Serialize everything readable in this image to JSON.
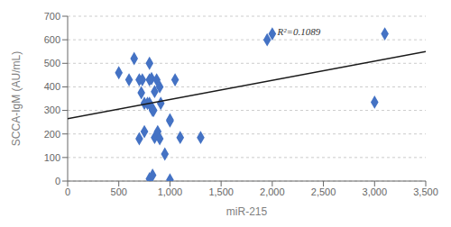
{
  "chart_data": {
    "type": "scatter",
    "xlabel": "miR-215",
    "ylabel": "SCCA-IgM (AU/mL)",
    "xlim": [
      0,
      3500
    ],
    "ylim": [
      0,
      700
    ],
    "xticks": [
      0,
      500,
      {
        "value": 1000,
        "label": "1,000"
      },
      {
        "value": 1500,
        "label": "1,500"
      },
      {
        "value": 2000,
        "label": "2,000"
      },
      {
        "value": 2500,
        "label": "2,500"
      },
      {
        "value": 3000,
        "label": "3,000"
      },
      {
        "value": 3500,
        "label": "3,500"
      }
    ],
    "yticks": [
      0,
      100,
      200,
      300,
      400,
      500,
      600,
      700
    ],
    "grid": "y",
    "series": [
      {
        "type": "scatter",
        "color": "#4472C4",
        "marker": "diamond",
        "x": [
          500,
          600,
          650,
          700,
          700,
          720,
          730,
          750,
          750,
          780,
          800,
          800,
          800,
          800,
          810,
          820,
          830,
          830,
          840,
          850,
          850,
          870,
          880,
          900,
          900,
          910,
          950,
          1000,
          1000,
          1000,
          1050,
          1100,
          1300,
          1950,
          2000,
          3000,
          3100
        ],
        "values": [
          460,
          430,
          520,
          430,
          180,
          375,
          430,
          330,
          210,
          330,
          500,
          430,
          330,
          10,
          320,
          435,
          300,
          25,
          300,
          380,
          185,
          430,
          210,
          400,
          180,
          330,
          115,
          260,
          255,
          5,
          430,
          185,
          185,
          600,
          625,
          335,
          625
        ]
      },
      {
        "type": "line",
        "color": "#1a1a1a",
        "x": [
          0,
          3500
        ],
        "values": [
          265,
          550
        ]
      }
    ],
    "annotations": [
      {
        "text": "R²=0.1089",
        "x": 2050,
        "y": 658
      }
    ]
  }
}
